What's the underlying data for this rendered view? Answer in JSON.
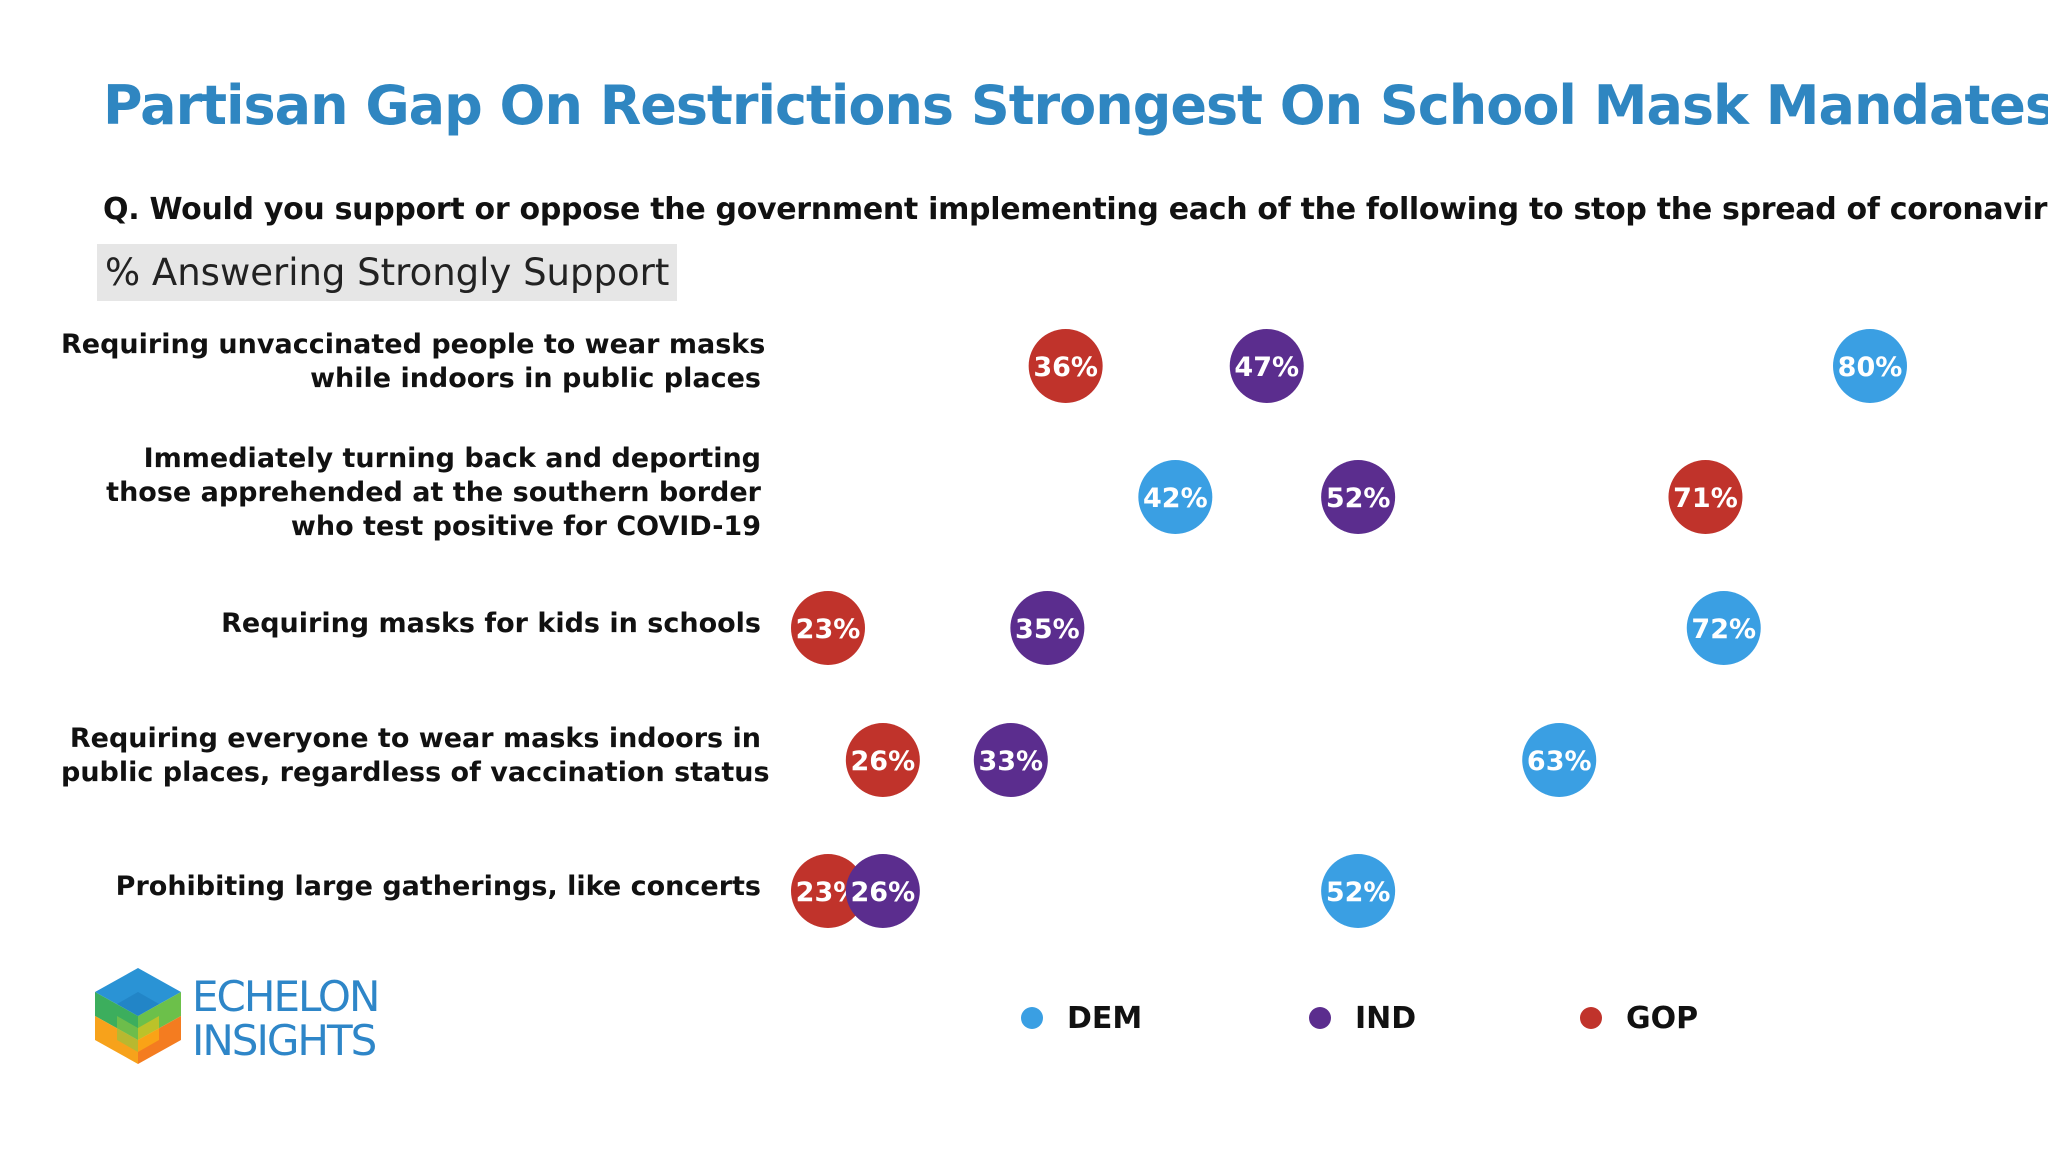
{
  "chart_data": {
    "type": "scatter",
    "title": "Partisan Gap On Restrictions Strongest On School Mask Mandates",
    "question": "Q. Would you support or oppose the government implementing each of the following to stop the spread of coronavirus?",
    "subtitle": "% Answering Strongly Support",
    "xlim": [
      23,
      80
    ],
    "colors": {
      "DEM": "#3a9fe3",
      "IND": "#5b2d8e",
      "GOP": "#c0332b"
    },
    "series_order": [
      "DEM",
      "IND",
      "GOP"
    ],
    "rows": [
      {
        "label_lines": [
          "Requiring unvaccinated people to wear masks",
          "while indoors in public places"
        ],
        "values": {
          "GOP": 36,
          "IND": 47,
          "DEM": 80
        }
      },
      {
        "label_lines": [
          "Immediately turning back and deporting",
          "those apprehended at the southern border",
          "who test positive for COVID-19"
        ],
        "values": {
          "DEM": 42,
          "IND": 52,
          "GOP": 71
        }
      },
      {
        "label_lines": [
          "Requiring masks for kids in schools"
        ],
        "values": {
          "GOP": 23,
          "IND": 35,
          "DEM": 72
        }
      },
      {
        "label_lines": [
          "Requiring everyone to wear masks indoors in",
          "public places, regardless of vaccination status"
        ],
        "values": {
          "GOP": 26,
          "IND": 33,
          "DEM": 63
        }
      },
      {
        "label_lines": [
          "Prohibiting large gatherings, like concerts"
        ],
        "values": {
          "GOP": 23,
          "IND": 26,
          "DEM": 52
        }
      }
    ],
    "legend": [
      {
        "key": "DEM",
        "label": "DEM"
      },
      {
        "key": "IND",
        "label": "IND"
      },
      {
        "key": "GOP",
        "label": "GOP"
      }
    ]
  },
  "logo": {
    "line1": "ECHELON",
    "line2": "INSIGHTS"
  }
}
